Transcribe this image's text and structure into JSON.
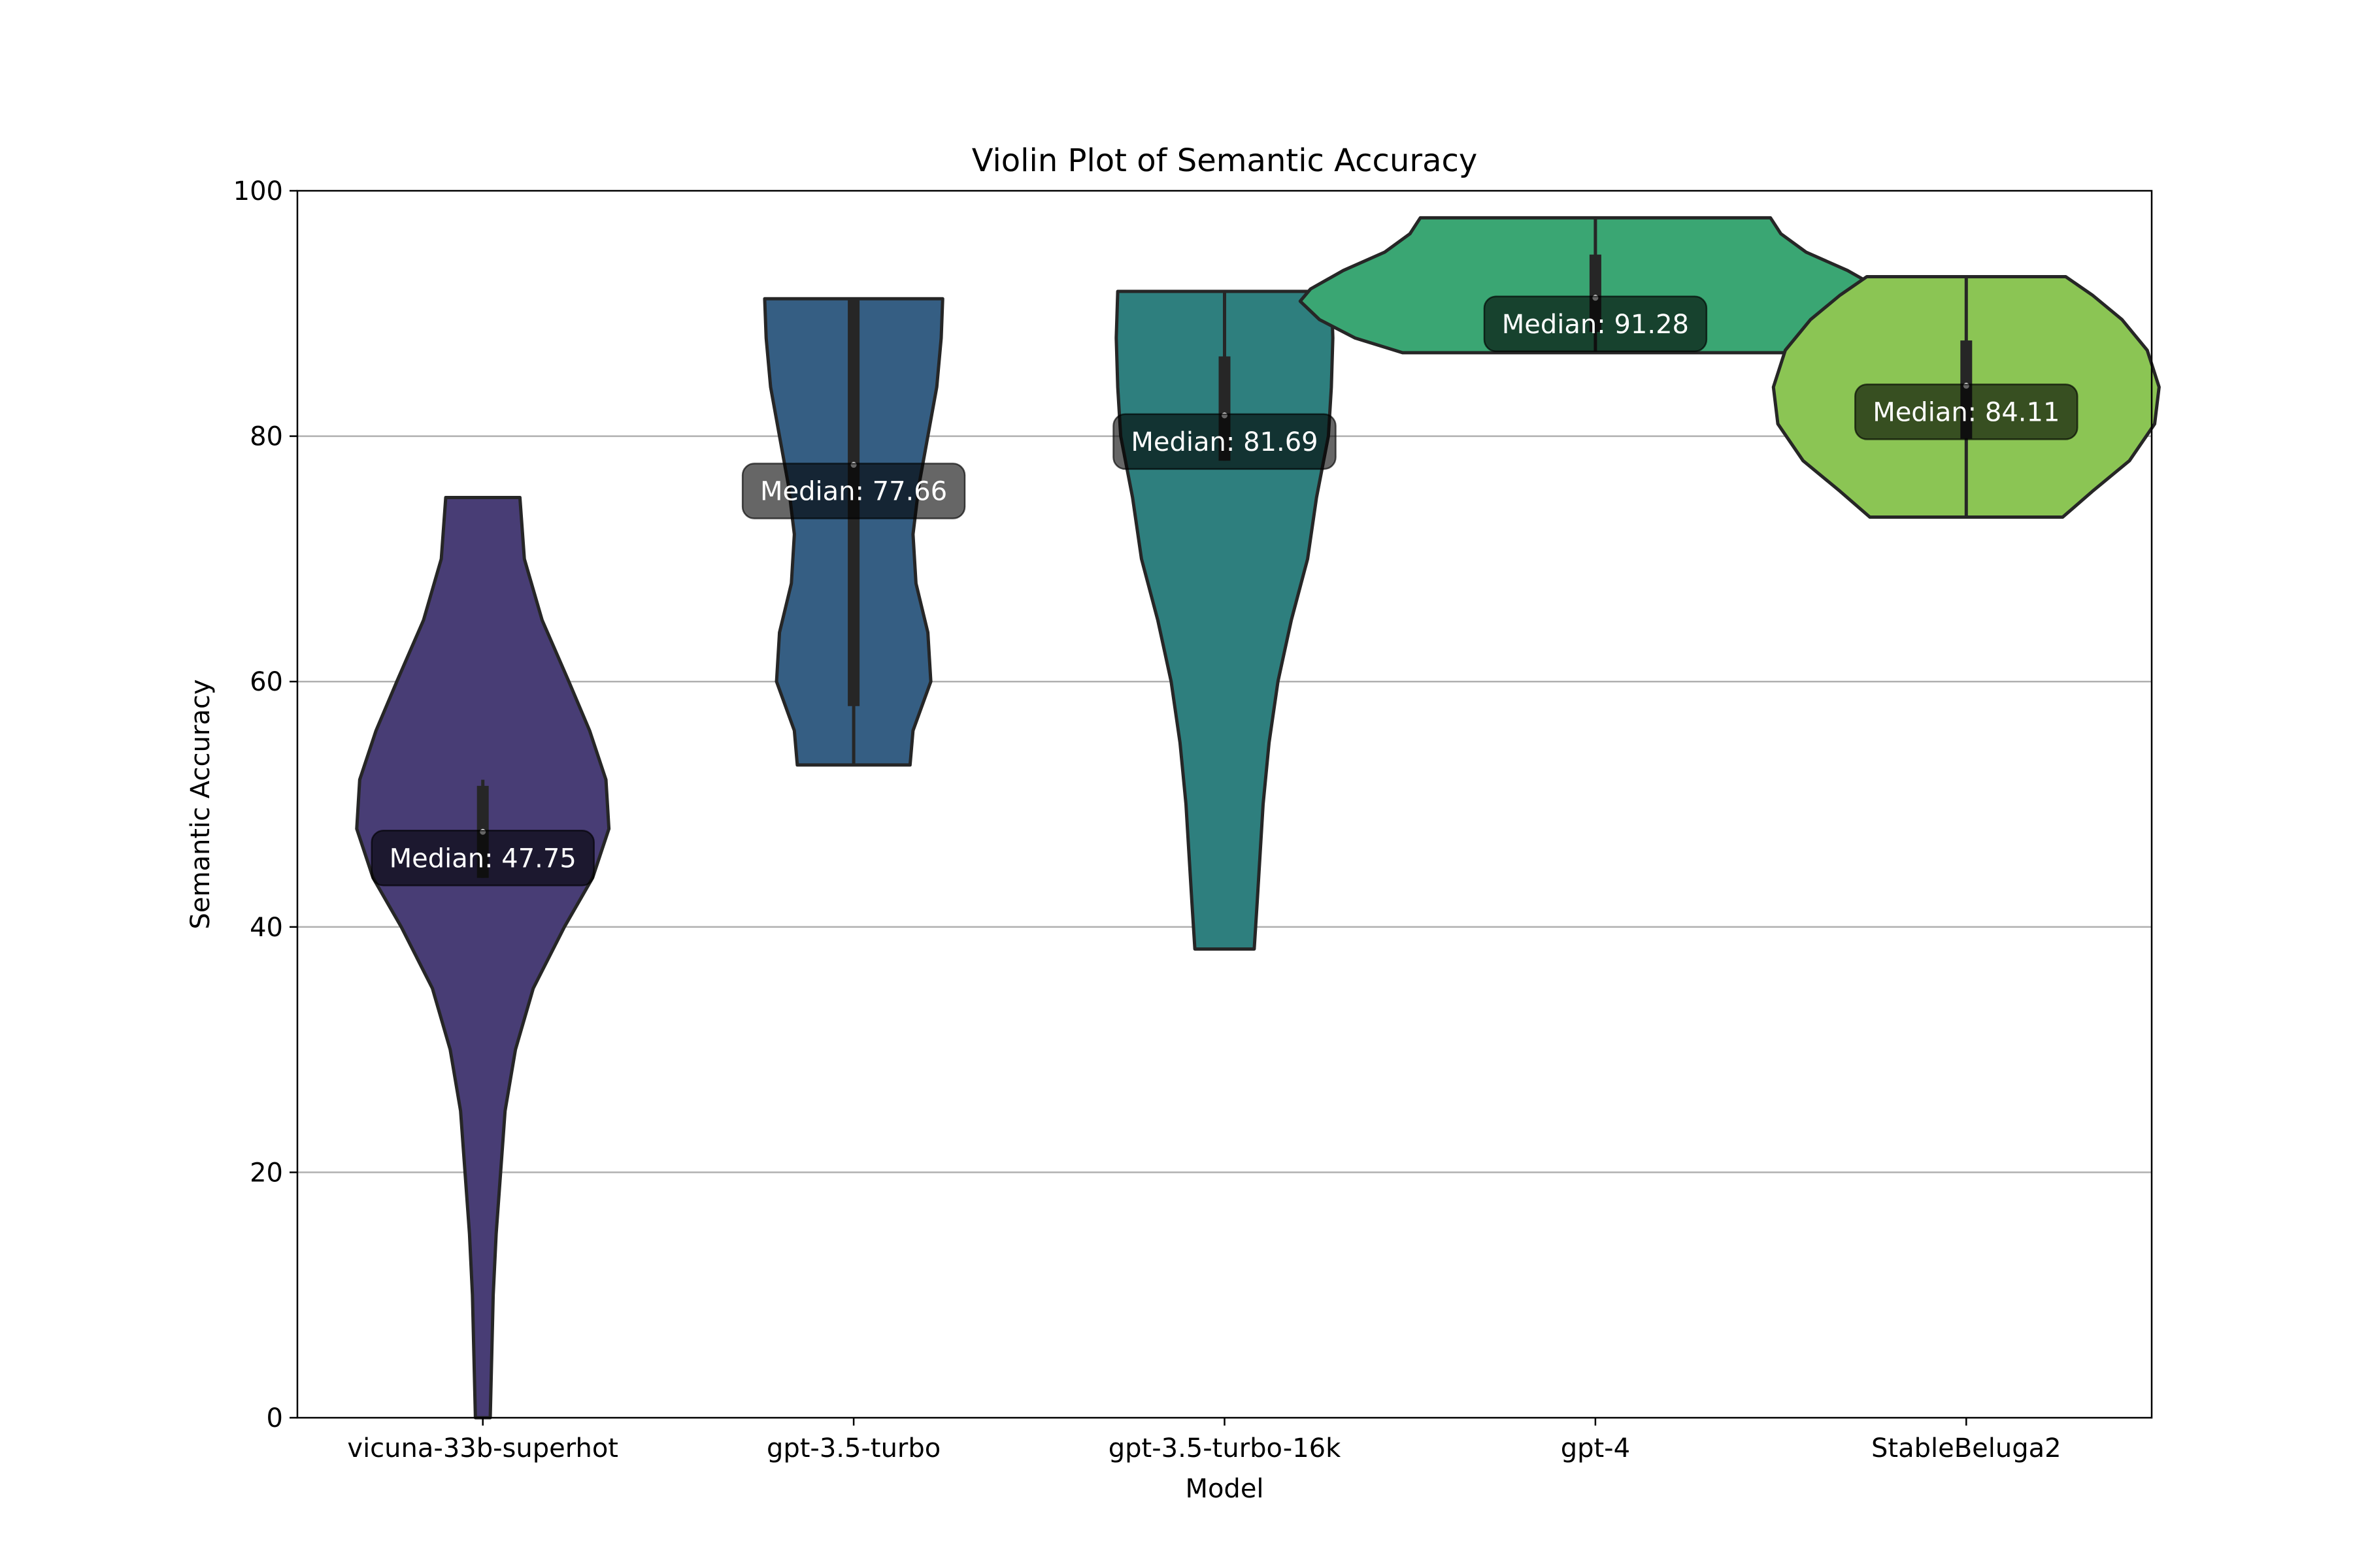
{
  "chart_data": {
    "type": "violin",
    "title": "Violin Plot of Semantic Accuracy",
    "xlabel": "Model",
    "ylabel": "Semantic Accuracy",
    "ylim": [
      0,
      100
    ],
    "yticks": [
      0,
      20,
      40,
      60,
      80,
      100
    ],
    "grid": "y",
    "legend": "none",
    "categories": [
      "vicuna-33b-superhot",
      "gpt-3.5-turbo",
      "gpt-3.5-turbo-16k",
      "gpt-4",
      "StableBeluga2"
    ],
    "median_label_prefix": "Median: ",
    "series": [
      {
        "category": "vicuna-33b-superhot",
        "color": "#483d75",
        "min": 0.0,
        "max": 75.0,
        "q1": 44.0,
        "median": 47.75,
        "q3": 51.5,
        "whisker_low": 44.0,
        "whisker_high": 52.0,
        "median_label": "47.75",
        "density": [
          [
            0,
            0.05
          ],
          [
            5,
            0.06
          ],
          [
            10,
            0.07
          ],
          [
            15,
            0.09
          ],
          [
            20,
            0.12
          ],
          [
            25,
            0.15
          ],
          [
            30,
            0.22
          ],
          [
            35,
            0.34
          ],
          [
            40,
            0.55
          ],
          [
            44,
            0.74
          ],
          [
            48,
            0.85
          ],
          [
            52,
            0.83
          ],
          [
            56,
            0.72
          ],
          [
            60,
            0.58
          ],
          [
            65,
            0.4
          ],
          [
            70,
            0.28
          ],
          [
            75,
            0.25
          ]
        ]
      },
      {
        "category": "gpt-3.5-turbo",
        "color": "#355e83",
        "min": 53.2,
        "max": 91.2,
        "q1": 58.0,
        "median": 77.66,
        "q3": 91.2,
        "whisker_low": 53.2,
        "whisker_high": 91.2,
        "median_label": "77.66",
        "density": [
          [
            53.2,
            0.38
          ],
          [
            56,
            0.4
          ],
          [
            60,
            0.52
          ],
          [
            64,
            0.5
          ],
          [
            68,
            0.42
          ],
          [
            72,
            0.4
          ],
          [
            76,
            0.44
          ],
          [
            80,
            0.5
          ],
          [
            84,
            0.56
          ],
          [
            88,
            0.59
          ],
          [
            91.2,
            0.6
          ]
        ]
      },
      {
        "category": "gpt-3.5-turbo-16k",
        "color": "#2e7f7e",
        "min": 38.2,
        "max": 91.8,
        "q1": 78.0,
        "median": 81.69,
        "q3": 86.5,
        "whisker_low": 78.0,
        "whisker_high": 91.8,
        "median_label": "81.69",
        "density": [
          [
            38.2,
            0.2
          ],
          [
            42,
            0.22
          ],
          [
            46,
            0.24
          ],
          [
            50,
            0.26
          ],
          [
            55,
            0.3
          ],
          [
            60,
            0.36
          ],
          [
            65,
            0.45
          ],
          [
            70,
            0.56
          ],
          [
            75,
            0.62
          ],
          [
            80,
            0.7
          ],
          [
            84,
            0.72
          ],
          [
            88,
            0.73
          ],
          [
            91.8,
            0.72
          ]
        ]
      },
      {
        "category": "gpt-4",
        "color": "#3aa673",
        "min": 86.8,
        "max": 97.8,
        "q1": 88.5,
        "median": 91.28,
        "q3": 94.8,
        "whisker_low": 86.8,
        "whisker_high": 97.8,
        "median_label": "91.28",
        "density": [
          [
            86.8,
            1.3
          ],
          [
            88,
            1.62
          ],
          [
            89.5,
            1.86
          ],
          [
            91,
            1.99
          ],
          [
            92,
            1.92
          ],
          [
            93.5,
            1.7
          ],
          [
            95,
            1.42
          ],
          [
            96.5,
            1.25
          ],
          [
            97.8,
            1.18
          ]
        ]
      },
      {
        "category": "StableBeluga2",
        "color": "#8bc554",
        "min": 73.4,
        "max": 93.0,
        "q1": 79.8,
        "median": 84.11,
        "q3": 87.8,
        "whisker_low": 73.4,
        "whisker_high": 93.0,
        "median_label": "84.11",
        "density": [
          [
            73.4,
            0.65
          ],
          [
            75.5,
            0.85
          ],
          [
            78,
            1.1
          ],
          [
            81,
            1.27
          ],
          [
            84,
            1.3
          ],
          [
            87,
            1.22
          ],
          [
            89.5,
            1.05
          ],
          [
            91.5,
            0.85
          ],
          [
            93.0,
            0.67
          ]
        ]
      }
    ]
  }
}
